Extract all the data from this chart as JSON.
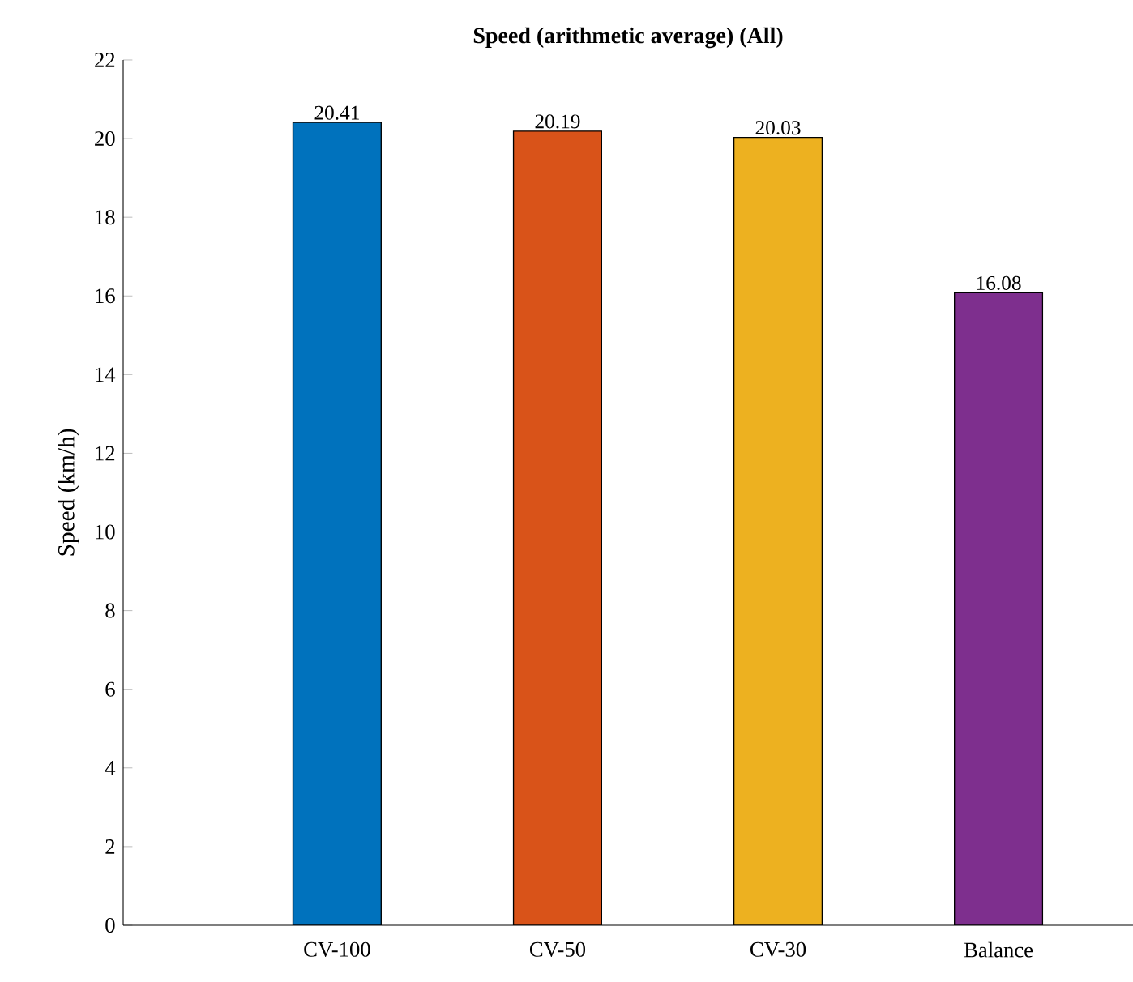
{
  "chart_data": {
    "type": "bar",
    "title": "Speed (arithmetic average) (All)",
    "ylabel": "Speed (km/h)",
    "categories": [
      "CV-100",
      "CV-50",
      "CV-30",
      "Balance"
    ],
    "values": [
      20.41,
      20.19,
      20.03,
      16.08
    ],
    "colors": [
      "#0072bd",
      "#d95319",
      "#edb120",
      "#7e2f8e"
    ],
    "ylim": [
      0,
      22
    ],
    "yticks": [
      0,
      2,
      4,
      6,
      8,
      10,
      12,
      14,
      16,
      18,
      20,
      22
    ],
    "data_labels": true
  }
}
